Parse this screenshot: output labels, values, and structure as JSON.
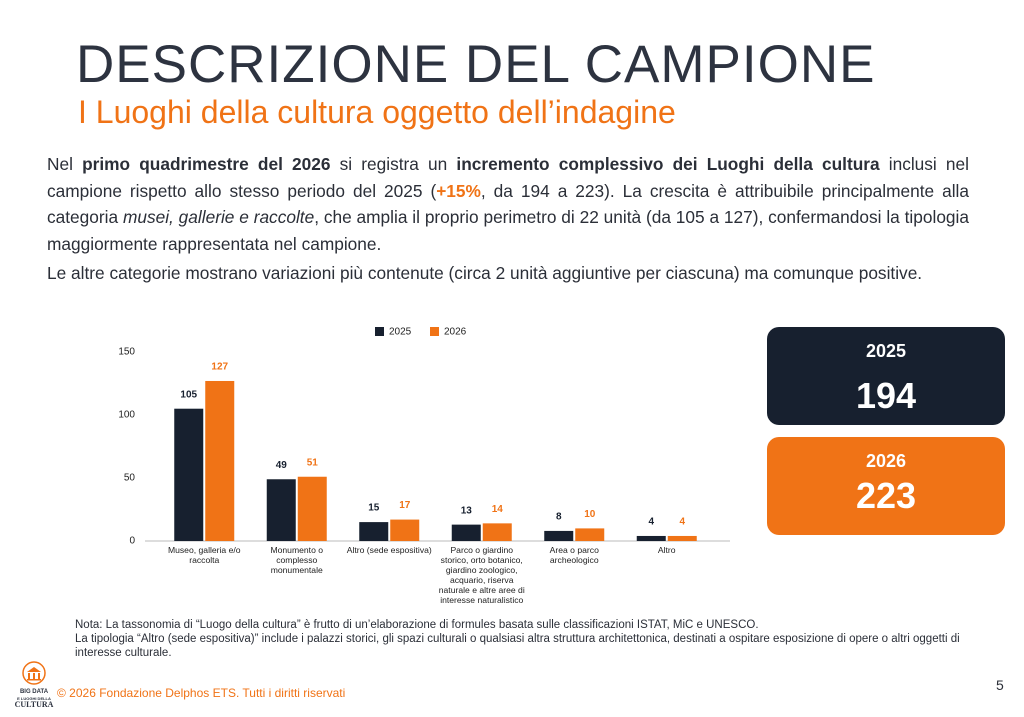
{
  "header": {
    "title": "DESCRIZIONE DEL CAMPIONE",
    "subtitle": "I Luoghi della cultura oggetto dell’indagine"
  },
  "body": {
    "paragraph1": {
      "runs": [
        "Nel ",
        "primo quadrimestre del 2026",
        " si registra un ",
        "incremento complessivo dei Luoghi della cultura",
        " inclusi nel campione rispetto allo stesso periodo del 2025 (",
        "+15%",
        ", da 194 a 223). La crescita è attribuibile principalmente alla categoria ",
        "musei, gallerie e raccolte",
        ", che amplia il proprio perimetro di 22 unità (da 105 a 127), confermandosi la tipologia maggiormente rappresentata nel campione."
      ]
    },
    "paragraph2": "Le altre categorie mostrano variazioni più contenute (circa 2 unità aggiuntive per ciascuna) ma comunque positive."
  },
  "chart_data": {
    "type": "bar",
    "categories": [
      "Museo, galleria e/o raccolta",
      "Monumento o complesso monumentale",
      "Altro (sede espositiva)",
      "Parco o giardino storico, orto botanico, giardino zoologico, acquario, riserva naturale e altre aree di interesse naturalistico",
      "Area o parco archeologico",
      "Altro"
    ],
    "series": [
      {
        "name": "2025",
        "color": "#17202f",
        "values": [
          105,
          49,
          15,
          13,
          8,
          4
        ]
      },
      {
        "name": "2026",
        "color": "#f07316",
        "values": [
          127,
          51,
          17,
          14,
          10,
          4
        ]
      }
    ],
    "ylim": [
      0,
      150
    ],
    "yticks": [
      0,
      50,
      100,
      150
    ],
    "grid": false,
    "legend": "top"
  },
  "kpis": [
    {
      "year": "2025",
      "value": 194
    },
    {
      "year": "2026",
      "value": 223
    }
  ],
  "notes": [
    "Nota: La tassonomia di “Luogo della cultura” è frutto di un’elaborazione di formules basata sulle classificazioni ISTAT, MiC e UNESCO.",
    "La tipologia “Altro (sede espositiva)” include i palazzi storici, gli spazi culturali o qualsiasi altra struttura architettonica, destinati a ospitare esposizione di opere o altri oggetti di interesse culturale."
  ],
  "footer": {
    "logo": [
      "BIG DATA",
      "E LUOGHI DELLA",
      "CULTURA"
    ],
    "copyright": "© 2026 Fondazione Delphos ETS. Tutti i diritti riservati",
    "page": "5"
  }
}
